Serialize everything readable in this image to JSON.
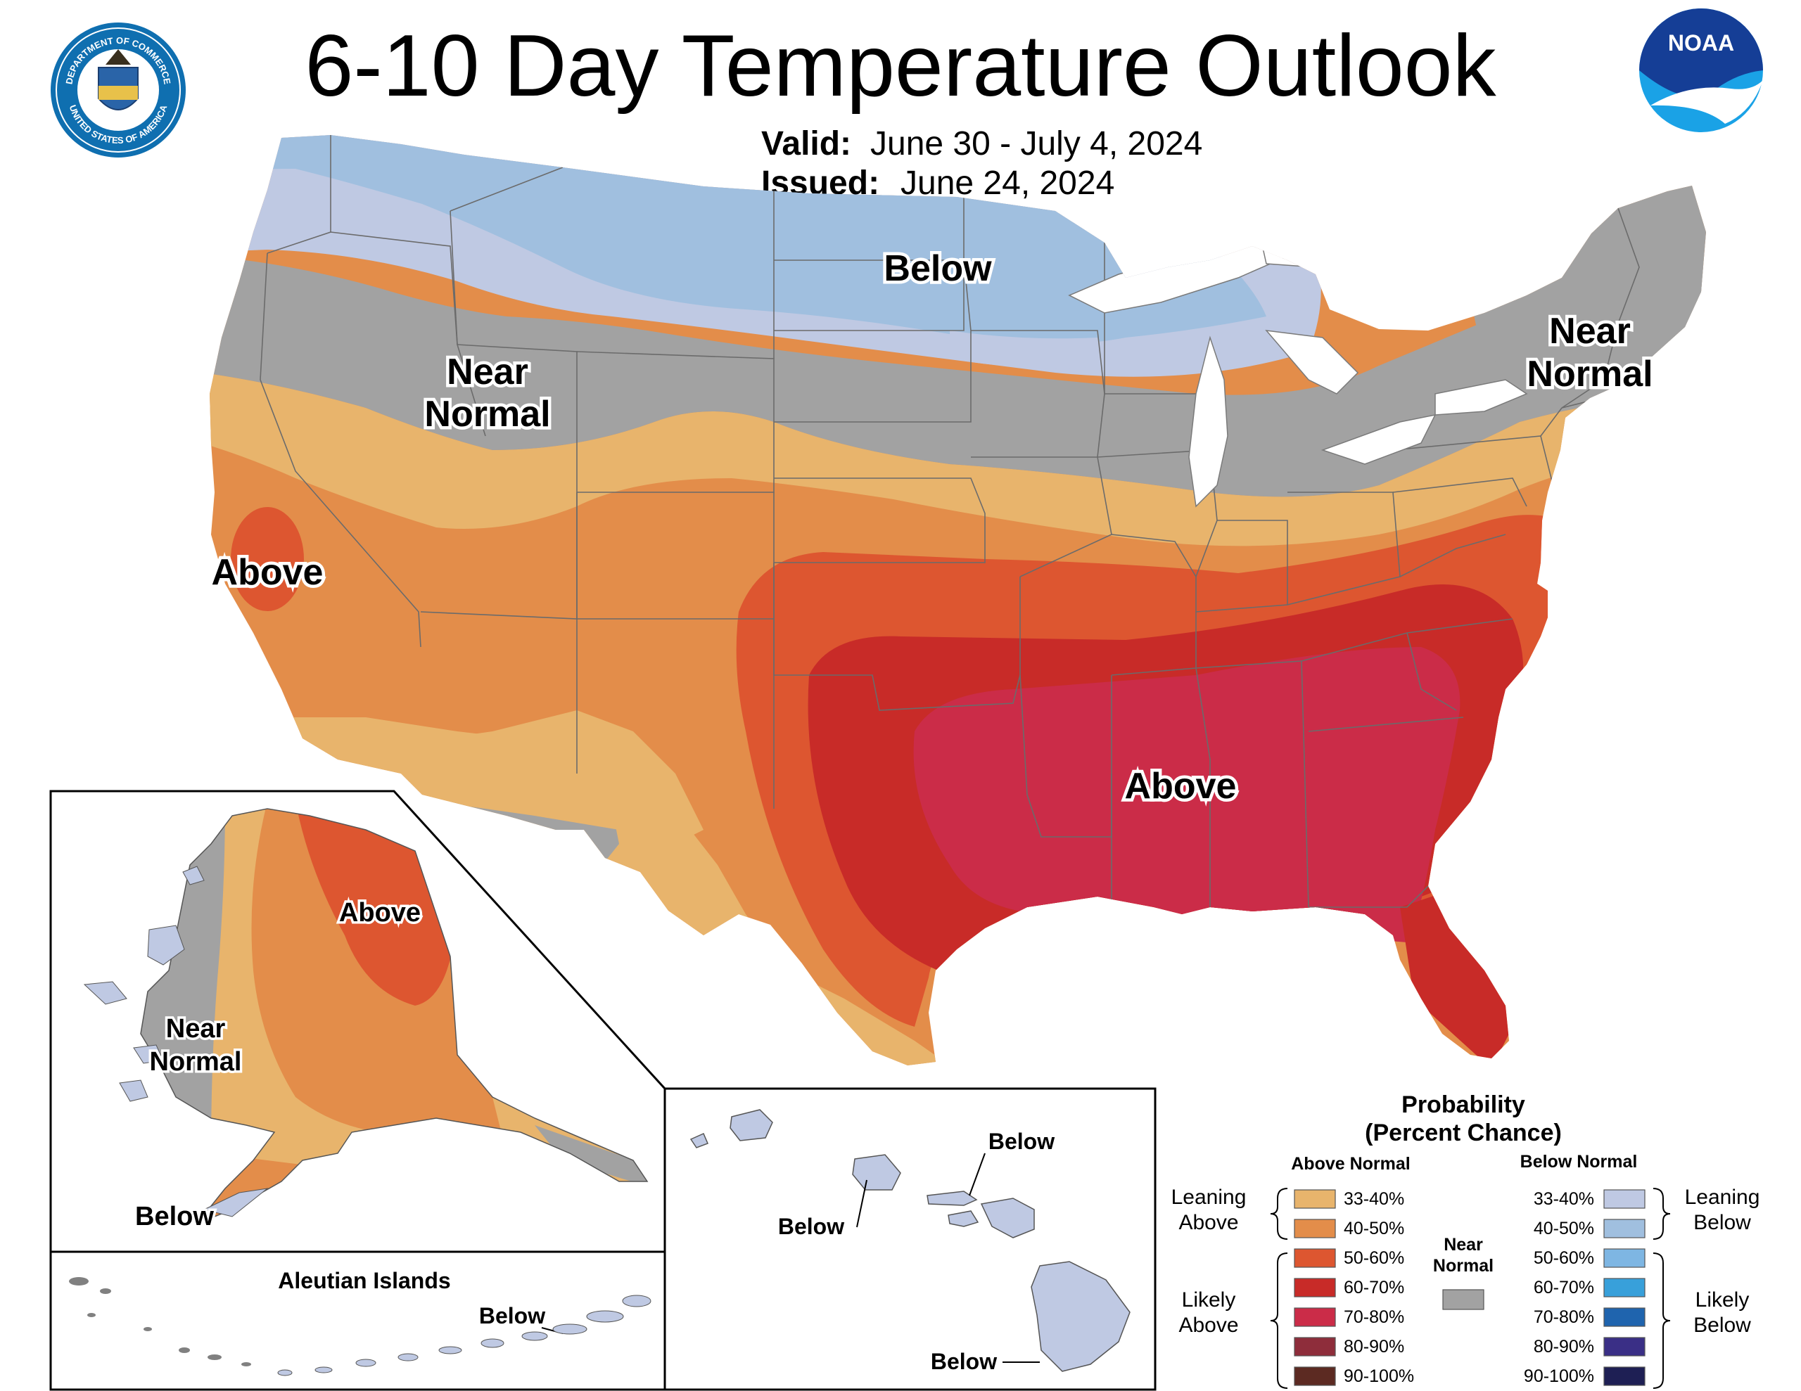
{
  "header": {
    "title": "6-10 Day Temperature Outlook",
    "valid_label": "Valid:",
    "valid_value": "June 30 - July 4, 2024",
    "issued_label": "Issued:",
    "issued_value": "June 24, 2024"
  },
  "logos": {
    "doc_seal_top": "DEPARTMENT OF COMMERCE",
    "doc_seal_bottom": "UNITED STATES OF AMERICA",
    "noaa": "NOAA"
  },
  "map_labels": {
    "conus_below": "Below",
    "conus_near_normal_west_1": "Near",
    "conus_near_normal_west_2": "Normal",
    "conus_near_normal_ne_1": "Near",
    "conus_near_normal_ne_2": "Normal",
    "conus_above_west": "Above",
    "conus_above_southeast": "Above",
    "alaska_above": "Above",
    "alaska_near_1": "Near",
    "alaska_near_2": "Normal",
    "alaska_below": "Below",
    "aleutian_title": "Aleutian Islands",
    "aleutian_below": "Below",
    "hawaii_below_1": "Below",
    "hawaii_below_2": "Below",
    "hawaii_below_3": "Below"
  },
  "legend": {
    "title_1": "Probability",
    "title_2": "(Percent Chance)",
    "above_header": "Above Normal",
    "below_header": "Below Normal",
    "near_header_1": "Near",
    "near_header_2": "Normal",
    "leaning_above_1": "Leaning",
    "leaning_above_2": "Above",
    "likely_above_1": "Likely",
    "likely_above_2": "Above",
    "leaning_below_1": "Leaning",
    "leaning_below_2": "Below",
    "likely_below_1": "Likely",
    "likely_below_2": "Below",
    "above_items": [
      {
        "label": "33-40%",
        "color": "#E8B46C"
      },
      {
        "label": "40-50%",
        "color": "#E38D4A"
      },
      {
        "label": "50-60%",
        "color": "#DD5630"
      },
      {
        "label": "60-70%",
        "color": "#C82B28"
      },
      {
        "label": "70-80%",
        "color": "#CB2C48"
      },
      {
        "label": "80-90%",
        "color": "#8E2D3B"
      },
      {
        "label": "90-100%",
        "color": "#5C2A22"
      }
    ],
    "below_items": [
      {
        "label": "33-40%",
        "color": "#BFC9E3"
      },
      {
        "label": "40-50%",
        "color": "#A0BFDF"
      },
      {
        "label": "50-60%",
        "color": "#7EB6E3"
      },
      {
        "label": "60-70%",
        "color": "#38A0DA"
      },
      {
        "label": "70-80%",
        "color": "#1F64AE"
      },
      {
        "label": "80-90%",
        "color": "#3A2F86"
      },
      {
        "label": "90-100%",
        "color": "#1E1F54"
      }
    ],
    "near_color": "#A2A2A2"
  }
}
